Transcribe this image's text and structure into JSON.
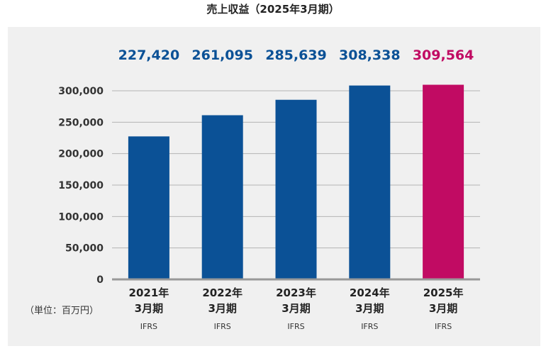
{
  "title": "売上収益（2025年3月期）",
  "unit_label": "（単位：百万円）",
  "colors": {
    "past": "#0b5196",
    "current": "#c10b63"
  },
  "chart_data": {
    "type": "bar",
    "title": "売上収益（2025年3月期）",
    "categories": [
      {
        "year": "2021年",
        "month": "3月期",
        "standard": "IFRS"
      },
      {
        "year": "2022年",
        "month": "3月期",
        "standard": "IFRS"
      },
      {
        "year": "2023年",
        "month": "3月期",
        "standard": "IFRS"
      },
      {
        "year": "2024年",
        "month": "3月期",
        "standard": "IFRS"
      },
      {
        "year": "2025年",
        "month": "3月期",
        "standard": "IFRS"
      }
    ],
    "values": [
      227420,
      261095,
      285639,
      308338,
      309564
    ],
    "value_labels": [
      "227,420",
      "261,095",
      "285,639",
      "308,338",
      "309,564"
    ],
    "highlight_index": 4,
    "yticks": [
      "0",
      "50,000",
      "100,000",
      "150,000",
      "200,000",
      "250,000",
      "300,000"
    ],
    "ylim": [
      0,
      300000
    ],
    "grid": true
  }
}
